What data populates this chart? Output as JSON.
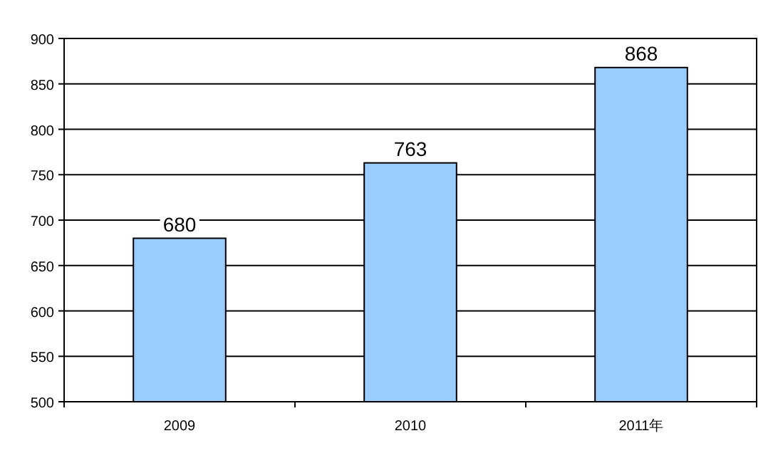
{
  "chart_data": {
    "type": "bar",
    "categories": [
      "2009",
      "2010",
      "2011年"
    ],
    "values": [
      680,
      763,
      868
    ],
    "color": "#99ccff",
    "ylim": [
      500,
      900
    ],
    "yticks": [
      500,
      550,
      600,
      650,
      700,
      750,
      800,
      850,
      900
    ],
    "grid": "y",
    "data_labels": true
  }
}
